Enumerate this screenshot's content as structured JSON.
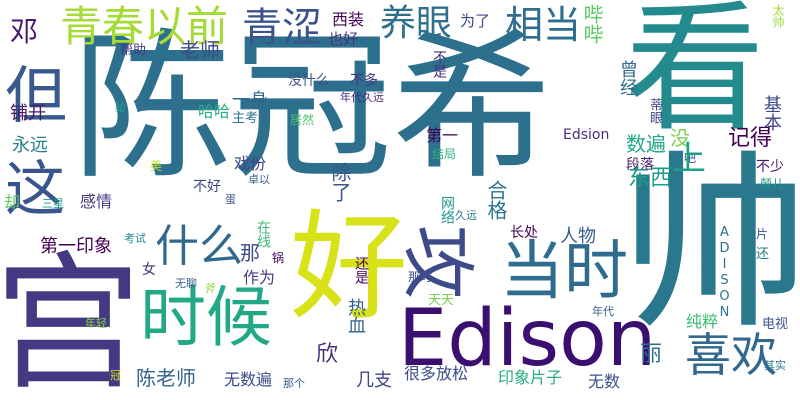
{
  "title": "",
  "words": [
    {
      "text": "陈冠希",
      "color": "#2d708e"
    },
    {
      "text": "看",
      "color": "#238a8d"
    },
    {
      "text": "帅",
      "color": "#2a788e"
    },
    {
      "text": "好",
      "color": "#d8e219"
    },
    {
      "text": "宫",
      "color": "#443a83"
    },
    {
      "text": "Edison",
      "color": "#3b0f70"
    },
    {
      "text": "时候",
      "color": "#22a884"
    },
    {
      "text": "当时",
      "color": "#2f6c8e"
    },
    {
      "text": "喜欢",
      "color": "#31688e"
    },
    {
      "text": "攻",
      "color": "#3e4a89"
    },
    {
      "text": "什么",
      "color": "#31688e"
    },
    {
      "text": "这",
      "color": "#39568c"
    },
    {
      "text": "但",
      "color": "#38598c"
    },
    {
      "text": "青春以前",
      "color": "#a5db36"
    },
    {
      "text": "青涩",
      "color": "#3b528b"
    },
    {
      "text": "养眼",
      "color": "#2e6f8e"
    },
    {
      "text": "相当",
      "color": "#2e6d8e"
    },
    {
      "text": "邓",
      "color": "#48186a"
    },
    {
      "text": "西装",
      "color": "#440154"
    },
    {
      "text": "也好",
      "color": "#46337e"
    },
    {
      "text": "为了",
      "color": "#3f4788"
    },
    {
      "text": "哔哔",
      "color": "#5ec962"
    },
    {
      "text": "老师",
      "color": "#3e4a89"
    },
    {
      "text": "帮助",
      "color": "#443983"
    },
    {
      "text": "不是",
      "color": "#472d7b"
    },
    {
      "text": "没什么",
      "color": "#3b528b"
    },
    {
      "text": "不多",
      "color": "#443983"
    },
    {
      "text": "年代久远",
      "color": "#482878"
    },
    {
      "text": "曾经",
      "color": "#2f6c8e"
    },
    {
      "text": "基本",
      "color": "#3e4989"
    },
    {
      "text": "铺开",
      "color": "#48186a"
    },
    {
      "text": "给",
      "color": "#1fa188"
    },
    {
      "text": "一身",
      "color": "#33638d"
    },
    {
      "text": "哈哈",
      "color": "#27ad81"
    },
    {
      "text": "主考",
      "color": "#2c738e"
    },
    {
      "text": "居然",
      "color": "#4ac16d"
    },
    {
      "text": "Edsion",
      "color": "#472f7d"
    },
    {
      "text": "永远",
      "color": "#27808e"
    },
    {
      "text": "第一",
      "color": "#440154"
    },
    {
      "text": "蒂眼",
      "color": "#3f4788"
    },
    {
      "text": "没",
      "color": "#7ad151"
    },
    {
      "text": "记得",
      "color": "#440154"
    },
    {
      "text": "数遍",
      "color": "#22a884"
    },
    {
      "text": "吧",
      "color": "#3b518b"
    },
    {
      "text": "段落",
      "color": "#482173"
    },
    {
      "text": "上",
      "color": "#1f9e89"
    },
    {
      "text": "不少",
      "color": "#48186a"
    },
    {
      "text": "戏份",
      "color": "#414487"
    },
    {
      "text": "卓以",
      "color": "#355f8d"
    },
    {
      "text": "结局",
      "color": "#2db27d"
    },
    {
      "text": "东西",
      "color": "#1e9b8a"
    },
    {
      "text": "颠儿",
      "color": "#20938c"
    },
    {
      "text": "除了",
      "color": "#39568c"
    },
    {
      "text": "合格",
      "color": "#2b748e"
    },
    {
      "text": "美",
      "color": "#bddf26"
    },
    {
      "text": "不好",
      "color": "#3f4788"
    },
    {
      "text": "三星",
      "color": "#1f9a8a"
    },
    {
      "text": "感情",
      "color": "#443983"
    },
    {
      "text": "蛋",
      "color": "#3b528b"
    },
    {
      "text": "网络",
      "color": "#1e9c89"
    },
    {
      "text": "久远",
      "color": "#2a788e"
    },
    {
      "text": "长处",
      "color": "#440154"
    },
    {
      "text": "人物",
      "color": "#375b8d"
    },
    {
      "text": "却",
      "color": "#5ec962"
    },
    {
      "text": "考试",
      "color": "#23898e"
    },
    {
      "text": "在线",
      "color": "#3aba76"
    },
    {
      "text": "片",
      "color": "#3b528b"
    },
    {
      "text": "第一印象",
      "color": "#440154"
    },
    {
      "text": "那",
      "color": "#3e4a89"
    },
    {
      "text": "ADISON",
      "color": "#2c728e"
    },
    {
      "text": "还",
      "color": "#2a788e"
    },
    {
      "text": "女",
      "color": "#46327e"
    },
    {
      "text": "无聊",
      "color": "#33638d"
    },
    {
      "text": "作为",
      "color": "#433e85"
    },
    {
      "text": "锅",
      "color": "#450559"
    },
    {
      "text": "还是",
      "color": "#440154"
    },
    {
      "text": "那时",
      "color": "#3b528b"
    },
    {
      "text": "斧",
      "color": "#95d840"
    },
    {
      "text": "天天",
      "color": "#7ad151"
    },
    {
      "text": "年轻",
      "color": "#8bd646"
    },
    {
      "text": "热血",
      "color": "#33638d"
    },
    {
      "text": "纯粹",
      "color": "#3dbc74"
    },
    {
      "text": "电视",
      "color": "#3b528b"
    },
    {
      "text": "欣",
      "color": "#46327e"
    },
    {
      "text": "丽",
      "color": "#2c728e"
    },
    {
      "text": "年代",
      "color": "#34608d"
    },
    {
      "text": "冠",
      "color": "#d8e219"
    },
    {
      "text": "陈老师",
      "color": "#33638d"
    },
    {
      "text": "那个",
      "color": "#355e8d"
    },
    {
      "text": "无数遍",
      "color": "#3e4989"
    },
    {
      "text": "几支",
      "color": "#3f4788"
    },
    {
      "text": "很多放松",
      "color": "#3e4a89"
    },
    {
      "text": "印象片子",
      "color": "#27ad81"
    },
    {
      "text": "无数",
      "color": "#3b528b"
    },
    {
      "text": "其实",
      "color": "#2a788e"
    },
    {
      "text": "太帅",
      "color": "#a0da39"
    }
  ]
}
